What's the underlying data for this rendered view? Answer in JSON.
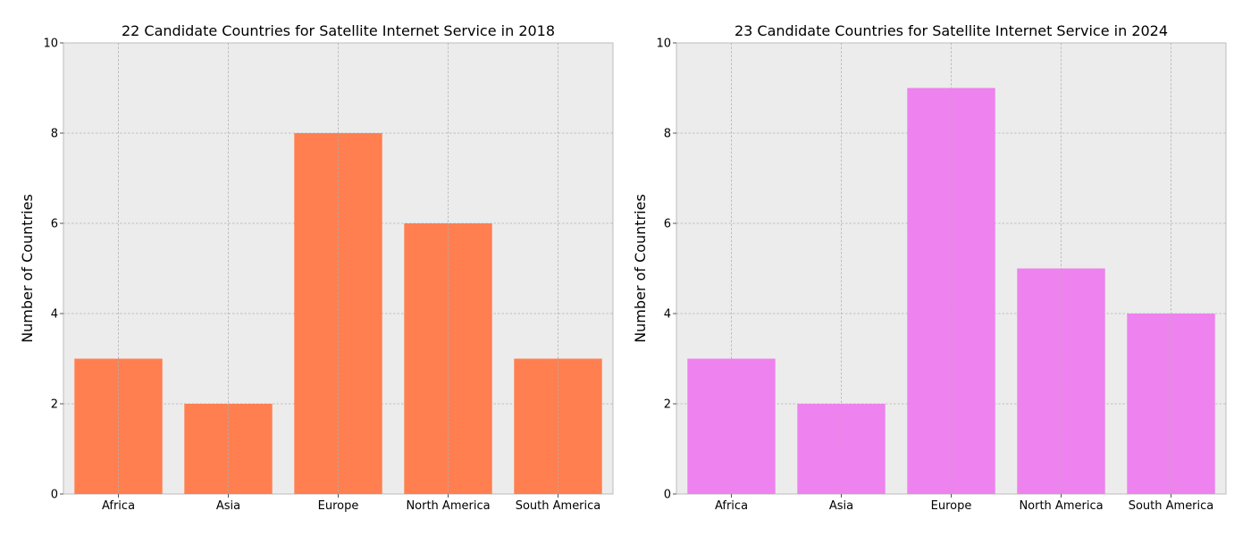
{
  "chart_data": [
    {
      "type": "bar",
      "title": "22 Candidate Countries for Satellite Internet Service in 2018",
      "xlabel": "",
      "ylabel": "Number of Countries",
      "categories": [
        "Africa",
        "Asia",
        "Europe",
        "North America",
        "South America"
      ],
      "values": [
        3,
        2,
        8,
        6,
        3
      ],
      "ylim": [
        0,
        10
      ],
      "yticks": [
        0,
        2,
        4,
        6,
        8,
        10
      ],
      "grid": true,
      "color": "#ff7f50"
    },
    {
      "type": "bar",
      "title": "23 Candidate Countries for Satellite Internet Service in 2024",
      "xlabel": "",
      "ylabel": "Number of Countries",
      "categories": [
        "Africa",
        "Asia",
        "Europe",
        "North America",
        "South America"
      ],
      "values": [
        3,
        2,
        9,
        5,
        4
      ],
      "ylim": [
        0,
        10
      ],
      "yticks": [
        0,
        2,
        4,
        6,
        8,
        10
      ],
      "grid": true,
      "color": "#ee82ee"
    }
  ]
}
